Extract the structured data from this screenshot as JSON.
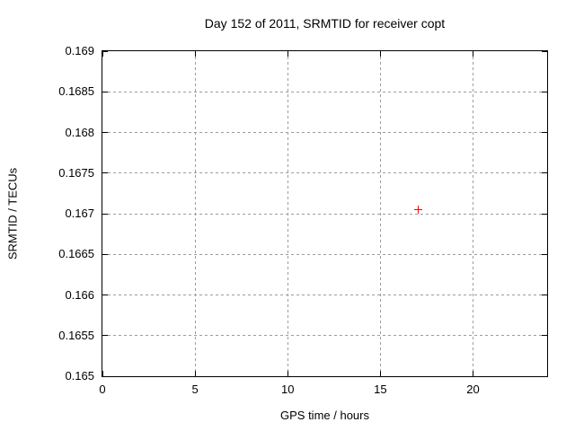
{
  "chart_data": {
    "type": "scatter",
    "title": "Day 152 of 2011, SRMTID for receiver copt",
    "xlabel": "GPS time / hours",
    "ylabel": "SRMTID / TECUs",
    "xlim": [
      0,
      24
    ],
    "ylim": [
      0.165,
      0.169
    ],
    "xticks": [
      {
        "value": 0,
        "label": "0"
      },
      {
        "value": 5,
        "label": "5"
      },
      {
        "value": 10,
        "label": "10"
      },
      {
        "value": 15,
        "label": "15"
      },
      {
        "value": 20,
        "label": "20"
      }
    ],
    "yticks": [
      {
        "value": 0.165,
        "label": "0.165"
      },
      {
        "value": 0.1655,
        "label": "0.1655"
      },
      {
        "value": 0.166,
        "label": "0.166"
      },
      {
        "value": 0.1665,
        "label": "0.1665"
      },
      {
        "value": 0.167,
        "label": "0.167"
      },
      {
        "value": 0.1675,
        "label": "0.1675"
      },
      {
        "value": 0.168,
        "label": "0.168"
      },
      {
        "value": 0.1685,
        "label": "0.1685"
      },
      {
        "value": 0.169,
        "label": "0.169"
      }
    ],
    "grid": true,
    "legend_position": "none",
    "series": [
      {
        "name": "SRMTID",
        "marker": "plus",
        "color": "#ff0000",
        "points": [
          {
            "x": 17.0,
            "y": 0.16705
          }
        ]
      }
    ],
    "colors": {
      "background": "#ffffff",
      "border": "#000000",
      "grid": "#9c9c9c",
      "text": "#000000"
    }
  }
}
